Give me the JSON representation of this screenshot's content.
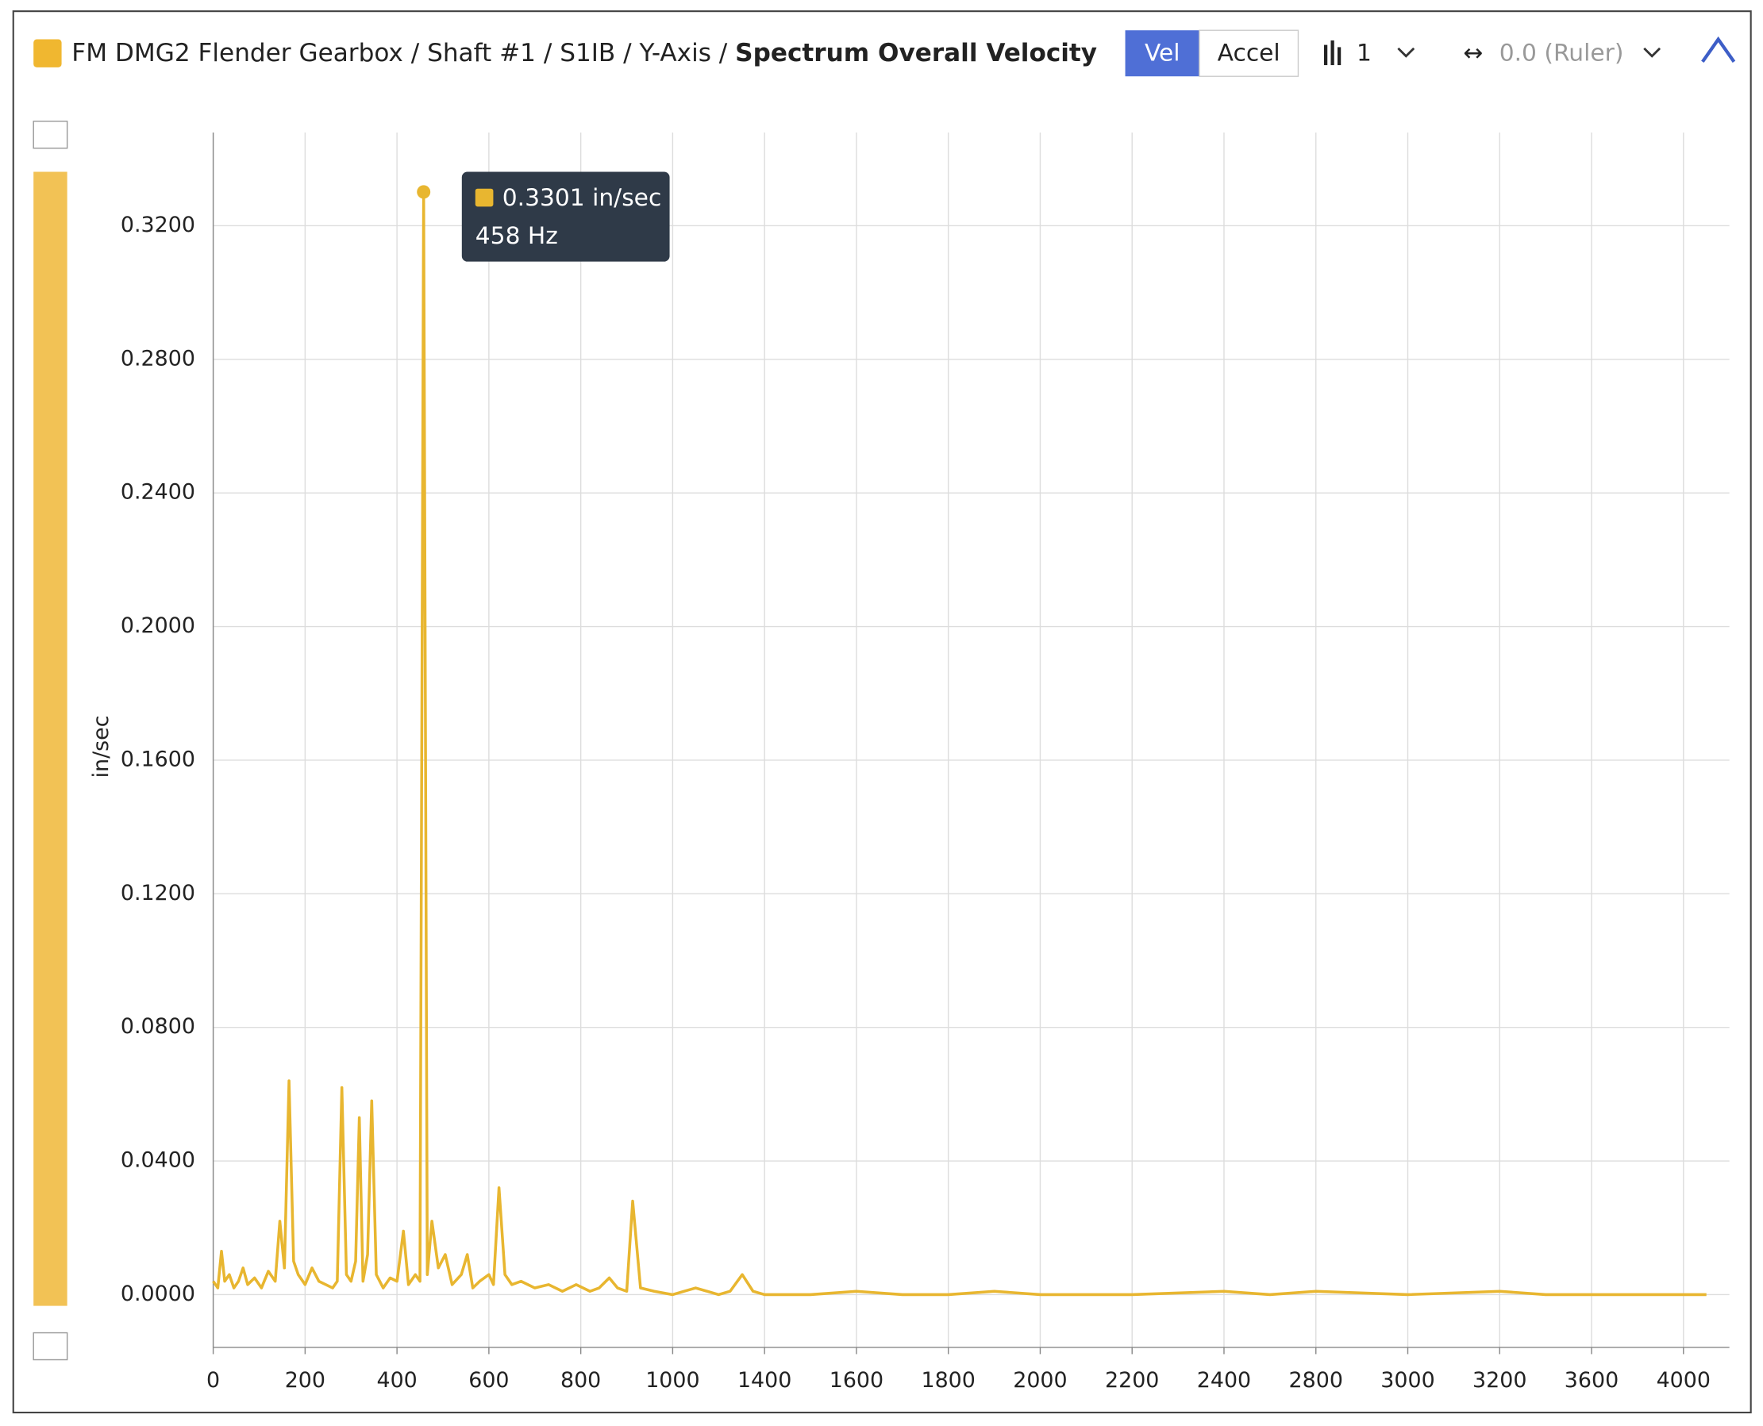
{
  "header": {
    "title": "FM DMG2 Flender Gearbox / Shaft #1 / S1IB / Y-Axis / ",
    "title_bold": "Spectrum Overall Velocity",
    "buttons": [
      "Vel",
      "Accel"
    ],
    "bars_count": "1",
    "ruler": "0.0 (Ruler)"
  },
  "tooltip": {
    "value_label": "0.3301 in/sec",
    "freq_label": "458 Hz"
  },
  "chart_data": {
    "type": "line",
    "y_label": "in/sec",
    "grid": true,
    "series": [
      {
        "name": "FM DMG2 Flender Gearbox / Shaft #1 / S1IB / Y-Axis / Spectrum Overall Velocity",
        "color": "#e8b630",
        "x": [
          0,
          10,
          18,
          25,
          35,
          45,
          55,
          65,
          75,
          90,
          105,
          120,
          135,
          145,
          155,
          165,
          175,
          185,
          200,
          215,
          230,
          245,
          260,
          270,
          280,
          290,
          300,
          310,
          318,
          326,
          336,
          345,
          355,
          370,
          385,
          400,
          414,
          425,
          440,
          450,
          458,
          466,
          476,
          490,
          505,
          520,
          540,
          553,
          565,
          580,
          600,
          610,
          622,
          635,
          650,
          670,
          700,
          730,
          760,
          790,
          820,
          840,
          862,
          880,
          900,
          913,
          930,
          960,
          1000,
          1050,
          1100,
          1150,
          1200,
          1250,
          1303,
          1350,
          1400,
          1500,
          1600,
          1700,
          1800,
          1900,
          2000,
          2200,
          2400,
          2600,
          2800,
          3000,
          3200,
          3400,
          3600,
          3800,
          4000,
          4100
        ],
        "values": [
          0.004,
          0.002,
          0.013,
          0.004,
          0.006,
          0.002,
          0.004,
          0.008,
          0.003,
          0.005,
          0.002,
          0.007,
          0.004,
          0.022,
          0.008,
          0.064,
          0.01,
          0.006,
          0.003,
          0.008,
          0.004,
          0.003,
          0.002,
          0.004,
          0.062,
          0.006,
          0.004,
          0.01,
          0.053,
          0.004,
          0.012,
          0.058,
          0.006,
          0.002,
          0.005,
          0.004,
          0.019,
          0.003,
          0.006,
          0.004,
          0.3301,
          0.006,
          0.022,
          0.008,
          0.012,
          0.003,
          0.006,
          0.012,
          0.002,
          0.004,
          0.006,
          0.003,
          0.032,
          0.006,
          0.003,
          0.004,
          0.002,
          0.003,
          0.001,
          0.003,
          0.001,
          0.002,
          0.005,
          0.002,
          0.001,
          0.028,
          0.002,
          0.001,
          0.0,
          0.001,
          0.002,
          0.001,
          0.0,
          0.001,
          0.006,
          0.001,
          0.0,
          0.0,
          0.001,
          0.0,
          0.0,
          0.001,
          0.0,
          0.0,
          0.001,
          0.0,
          0.001,
          0.0,
          0.001,
          0.0,
          0.0,
          0.0,
          0.0,
          0.0
        ]
      }
    ],
    "xlim": [
      0,
      4200
    ],
    "xticks": [
      0,
      200,
      400,
      600,
      800,
      1000,
      1400,
      1600,
      1800,
      2000,
      2200,
      2400,
      2800,
      3000,
      3200,
      3600,
      4000
    ],
    "ylim": [
      -0.0158,
      0.3479
    ],
    "yticks": [
      {
        "value": 0,
        "label": "0.0000"
      },
      {
        "value": 0.04,
        "label": "0.0400"
      },
      {
        "value": 0.08,
        "label": "0.0800"
      },
      {
        "value": 0.12,
        "label": "0.1200"
      },
      {
        "value": 0.16,
        "label": "0.1600"
      },
      {
        "value": 0.2,
        "label": "0.2000"
      },
      {
        "value": 0.24,
        "label": "0.2400"
      },
      {
        "value": 0.28,
        "label": "0.2800"
      },
      {
        "value": 0.32,
        "label": "0.3200"
      }
    ]
  }
}
